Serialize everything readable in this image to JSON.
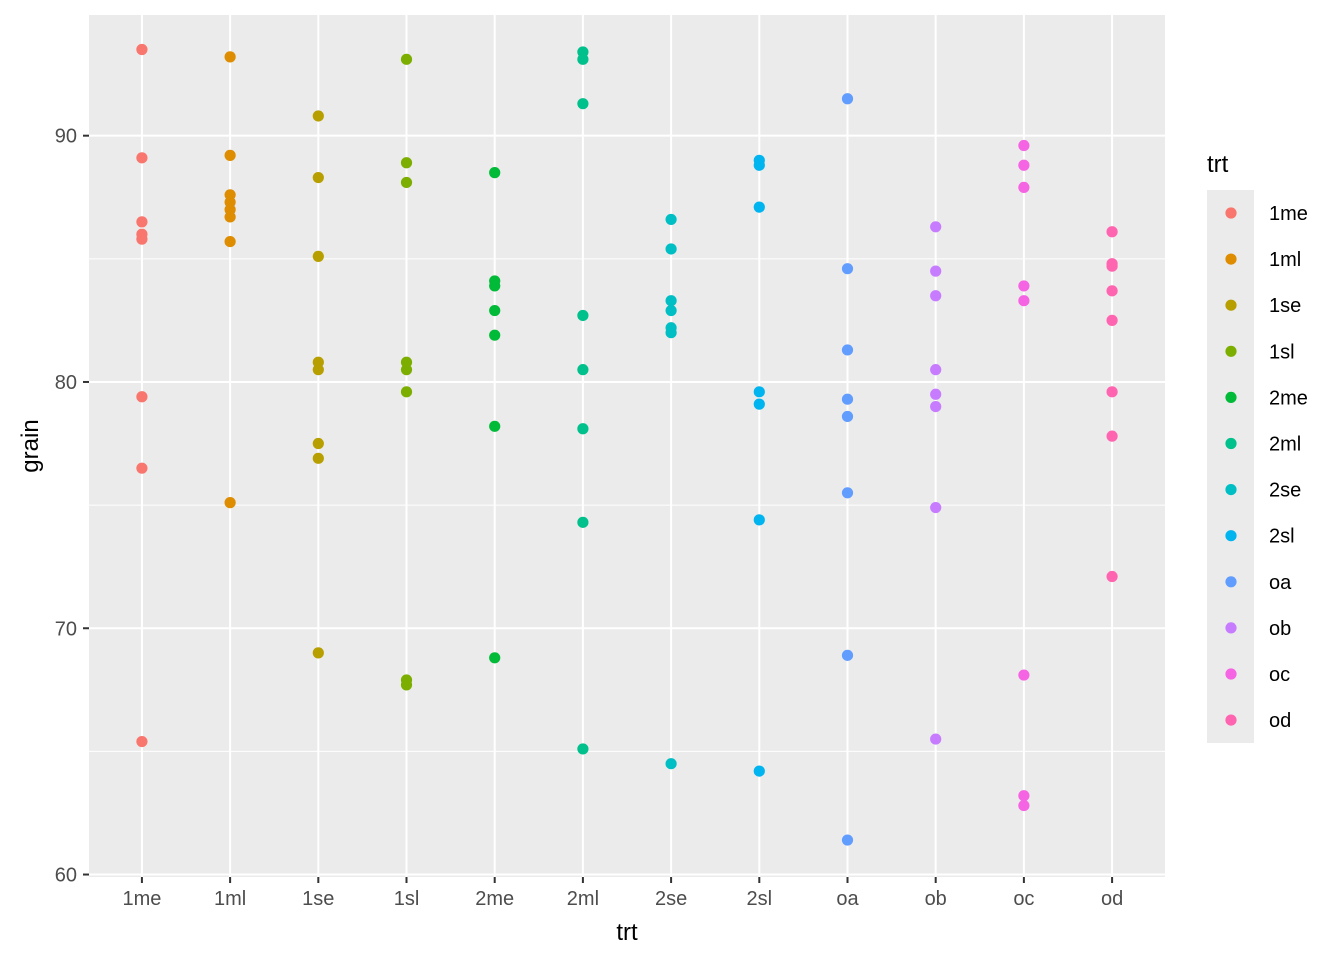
{
  "chart_data": {
    "type": "scatter",
    "xlabel": "trt",
    "ylabel": "grain",
    "categories": [
      "1me",
      "1ml",
      "1se",
      "1sl",
      "2me",
      "2ml",
      "2se",
      "2sl",
      "oa",
      "ob",
      "oc",
      "od"
    ],
    "ylim": [
      59.9,
      94.9
    ],
    "yticks": [
      60,
      70,
      80,
      90
    ],
    "grid": true,
    "legend": {
      "title": "trt",
      "placement": "right",
      "entries": [
        "1me",
        "1ml",
        "1se",
        "1sl",
        "2me",
        "2ml",
        "2se",
        "2sl",
        "oa",
        "ob",
        "oc",
        "od"
      ]
    },
    "series": [
      {
        "name": "1me",
        "color": "#F8766D",
        "values": [
          93.5,
          89.1,
          86.5,
          86.0,
          85.8,
          79.4,
          76.5,
          65.4
        ]
      },
      {
        "name": "1ml",
        "color": "#DE8C00",
        "values": [
          93.2,
          89.2,
          87.6,
          87.3,
          87.0,
          86.7,
          85.7,
          75.1
        ]
      },
      {
        "name": "1se",
        "color": "#B79F00",
        "values": [
          90.8,
          88.3,
          85.1,
          80.8,
          80.5,
          77.5,
          76.9,
          69.0
        ]
      },
      {
        "name": "1sl",
        "color": "#7CAE00",
        "values": [
          93.1,
          88.9,
          88.1,
          80.8,
          80.5,
          79.6,
          67.9,
          67.7
        ]
      },
      {
        "name": "2me",
        "color": "#00BA38",
        "values": [
          88.5,
          84.1,
          83.9,
          82.9,
          81.9,
          78.2,
          68.8
        ]
      },
      {
        "name": "2ml",
        "color": "#00C08B",
        "values": [
          93.4,
          93.1,
          91.3,
          82.7,
          80.5,
          78.1,
          74.3,
          65.1
        ]
      },
      {
        "name": "2se",
        "color": "#00BFC4",
        "values": [
          86.6,
          85.4,
          83.3,
          82.9,
          82.2,
          82.0,
          64.5
        ]
      },
      {
        "name": "2sl",
        "color": "#00B4F0",
        "values": [
          89.0,
          88.8,
          87.1,
          79.6,
          79.1,
          74.4,
          64.2
        ]
      },
      {
        "name": "oa",
        "color": "#619CFF",
        "values": [
          91.5,
          84.6,
          81.3,
          79.3,
          78.6,
          75.5,
          68.9,
          61.4
        ]
      },
      {
        "name": "ob",
        "color": "#C77CFF",
        "values": [
          86.3,
          84.5,
          83.5,
          80.5,
          79.5,
          79.0,
          74.9,
          65.5
        ]
      },
      {
        "name": "oc",
        "color": "#F564E3",
        "values": [
          89.6,
          88.8,
          87.9,
          83.9,
          83.3,
          68.1,
          63.2,
          62.8
        ]
      },
      {
        "name": "od",
        "color": "#FF64B0",
        "values": [
          86.1,
          84.8,
          84.7,
          83.7,
          82.5,
          79.6,
          77.8,
          72.1
        ]
      }
    ]
  },
  "colors": {
    "panel_background": "#EBEBEB",
    "grid": "#FFFFFF",
    "tick_text": "#4D4D4D"
  }
}
